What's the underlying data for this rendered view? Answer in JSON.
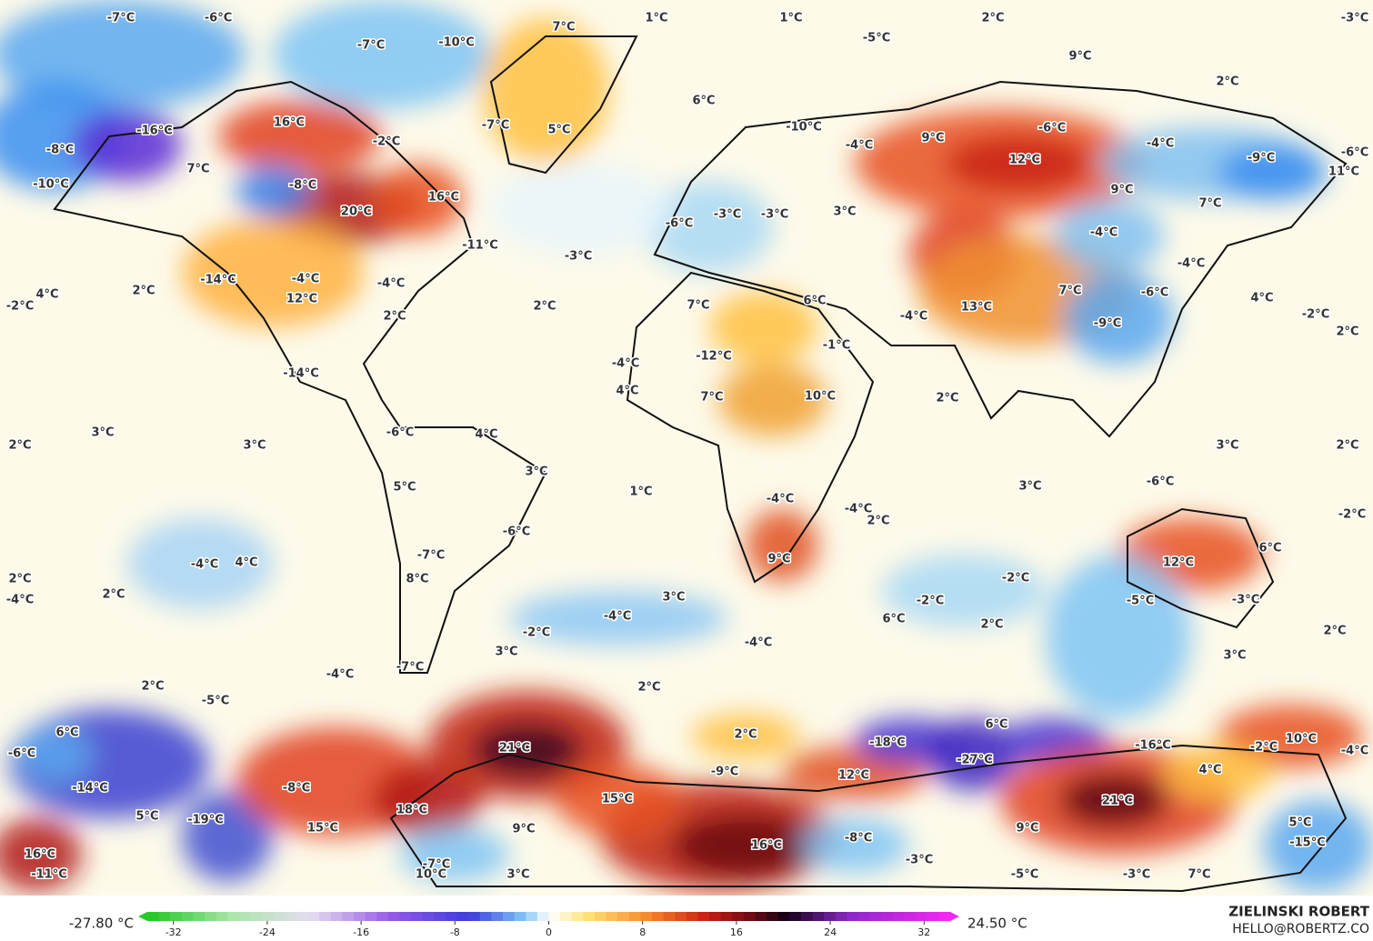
{
  "map": {
    "labels": [
      "-7°C",
      "-6°C",
      "1°C",
      "1°C",
      "2°C",
      "-3°C",
      "7°C",
      "-7°C",
      "-10°C",
      "-5°C",
      "9°C",
      "6°C",
      "2°C",
      "16°C",
      "-16°C",
      "-7°C",
      "5°C",
      "-10°C",
      "-8°C",
      "-2°C",
      "-4°C",
      "9°C",
      "-6°C",
      "-4°C",
      "-9°C",
      "-6°C",
      "12°C",
      "11°C",
      "7°C",
      "-8°C",
      "-10°C",
      "9°C",
      "16°C",
      "7°C",
      "20°C",
      "-6°C",
      "-3°C",
      "-3°C",
      "3°C",
      "-4°C",
      "-11°C",
      "-3°C",
      "-4°C",
      "-14°C",
      "-4°C",
      "2°C",
      "4°C",
      "-2°C",
      "12°C",
      "-4°C",
      "7°C",
      "-6°C",
      "4°C",
      "2°C",
      "2°C",
      "7°C",
      "6°C",
      "13°C",
      "-4°C",
      "-2°C",
      "-9°C",
      "-1°C",
      "2°C",
      "-12°C",
      "-4°C",
      "-14°C",
      "4°C",
      "7°C",
      "10°C",
      "2°C",
      "3°C",
      "-6°C",
      "4°C",
      "2°C",
      "3°C",
      "3°C",
      "2°C",
      "3°C",
      "5°C",
      "3°C",
      "-6°C",
      "1°C",
      "-4°C",
      "-4°C",
      "2°C",
      "-2°C",
      "-6°C",
      "6°C",
      "9°C",
      "12°C",
      "-7°C",
      "-4°C",
      "4°C",
      "2°C",
      "8°C",
      "-2°C",
      "-4°C",
      "2°C",
      "3°C",
      "-2°C",
      "-5°C",
      "-3°C",
      "-4°C",
      "6°C",
      "2°C",
      "2°C",
      "-2°C",
      "-4°C",
      "3°C",
      "3°C",
      "-7°C",
      "-4°C",
      "2°C",
      "2°C",
      "-5°C",
      "6°C",
      "2°C",
      "6°C",
      "-6°C",
      "21°C",
      "-18°C",
      "-16°C",
      "-2°C",
      "10°C",
      "-4°C",
      "-27°C",
      "-9°C",
      "4°C",
      "12°C",
      "-14°C",
      "-8°C",
      "15°C",
      "21°C",
      "18°C",
      "5°C",
      "-19°C",
      "15°C",
      "9°C",
      "9°C",
      "5°C",
      "-8°C",
      "16°C",
      "-15°C",
      "16°C",
      "-3°C",
      "-7°C",
      "-11°C",
      "10°C",
      "3°C",
      "-5°C",
      "-3°C",
      "7°C"
    ]
  },
  "colorbar": {
    "min_label": "-27.80 °C",
    "max_label": "24.50 °C",
    "range": [
      -35,
      35
    ],
    "ticks": [
      -32,
      -24,
      -16,
      -8,
      0,
      8,
      16,
      24,
      32
    ]
  },
  "credit": {
    "name": "ZIELINSKI ROBERT",
    "contact": "HELLO@ROBERTZ.CO"
  }
}
